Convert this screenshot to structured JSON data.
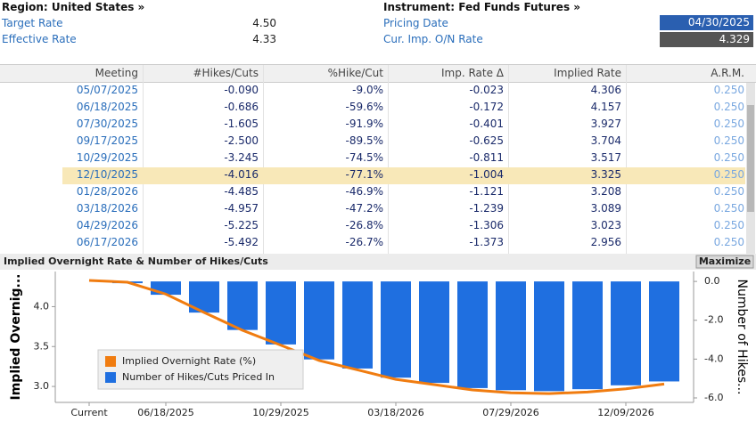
{
  "header": {
    "region": "Region: United States »",
    "target_rate_label": "Target Rate",
    "target_rate": "4.50",
    "effective_rate_label": "Effective Rate",
    "effective_rate": "4.33",
    "instrument": "Instrument: Fed Funds Futures »",
    "pricing_date_label": "Pricing Date",
    "pricing_date": "04/30/2025",
    "cur_rate_label": "Cur. Imp. O/N Rate",
    "cur_rate": "4.329"
  },
  "table": {
    "columns": [
      "Meeting",
      "#Hikes/Cuts",
      "%Hike/Cut",
      "Imp. Rate Δ",
      "Implied Rate",
      "A.R.M."
    ],
    "rows": [
      [
        "05/07/2025",
        "-0.090",
        "-9.0%",
        "-0.023",
        "4.306",
        "0.250"
      ],
      [
        "06/18/2025",
        "-0.686",
        "-59.6%",
        "-0.172",
        "4.157",
        "0.250"
      ],
      [
        "07/30/2025",
        "-1.605",
        "-91.9%",
        "-0.401",
        "3.927",
        "0.250"
      ],
      [
        "09/17/2025",
        "-2.500",
        "-89.5%",
        "-0.625",
        "3.704",
        "0.250"
      ],
      [
        "10/29/2025",
        "-3.245",
        "-74.5%",
        "-0.811",
        "3.517",
        "0.250"
      ],
      [
        "12/10/2025",
        "-4.016",
        "-77.1%",
        "-1.004",
        "3.325",
        "0.250"
      ],
      [
        "01/28/2026",
        "-4.485",
        "-46.9%",
        "-1.121",
        "3.208",
        "0.250"
      ],
      [
        "03/18/2026",
        "-4.957",
        "-47.2%",
        "-1.239",
        "3.089",
        "0.250"
      ],
      [
        "04/29/2026",
        "-5.225",
        "-26.8%",
        "-1.306",
        "3.023",
        "0.250"
      ],
      [
        "06/17/2026",
        "-5.492",
        "-26.7%",
        "-1.373",
        "2.956",
        "0.250"
      ]
    ],
    "highlight_row": 5
  },
  "chart_data": {
    "type": "bar_line",
    "title": "Implied Overnight Rate & Number of Hikes/Cuts",
    "button": "Maximize",
    "y_label": "Implied Overnig...",
    "y2_label": "Number of Hikes...",
    "categories": [
      "Current",
      null,
      "06/18/2025",
      null,
      null,
      "10/29/2025",
      null,
      null,
      "03/18/2026",
      null,
      null,
      "07/29/2026",
      null,
      null,
      "12/09/2026",
      null
    ],
    "series": [
      {
        "name": "Implied Overnight Rate (%)",
        "color": "#f07c10",
        "axis": "y",
        "kind": "line",
        "values": [
          4.329,
          4.306,
          4.157,
          3.927,
          3.704,
          3.517,
          3.325,
          3.208,
          3.089,
          3.023,
          2.956,
          2.92,
          2.91,
          2.93,
          2.97,
          3.03
        ]
      },
      {
        "name": "Number of Hikes/Cuts Priced In",
        "color": "#1f6fe0",
        "axis": "y2",
        "kind": "bar",
        "values": [
          null,
          -0.09,
          -0.686,
          -1.605,
          -2.5,
          -3.245,
          -4.016,
          -4.485,
          -4.957,
          -5.225,
          -5.492,
          -5.6,
          -5.65,
          -5.55,
          -5.35,
          -5.15
        ]
      }
    ],
    "ylim": [
      2.8,
      4.44
    ],
    "yticks": [
      {
        "value": 3,
        "label": "3.0"
      },
      3.5,
      {
        "value": 4,
        "label": "4.0"
      }
    ],
    "y2lim": [
      -6.23,
      0.51
    ],
    "y2ticks": [
      {
        "value": -6,
        "label": "-6.0"
      },
      {
        "value": -4,
        "label": "-4.0"
      },
      {
        "value": -2,
        "label": "-2.0"
      },
      {
        "value": 0,
        "label": "0.0"
      }
    ]
  }
}
